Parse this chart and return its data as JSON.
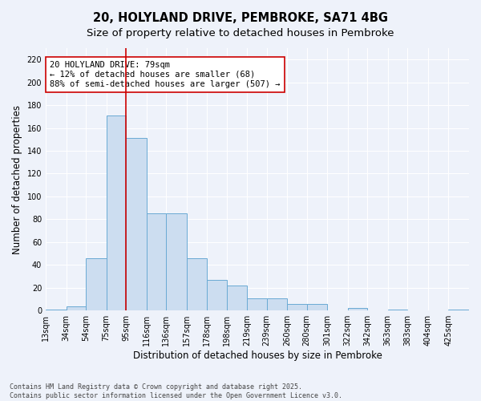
{
  "title_line1": "20, HOLYLAND DRIVE, PEMBROKE, SA71 4BG",
  "title_line2": "Size of property relative to detached houses in Pembroke",
  "xlabel": "Distribution of detached houses by size in Pembroke",
  "ylabel": "Number of detached properties",
  "bin_edges": [
    13,
    34,
    54,
    75,
    95,
    116,
    136,
    157,
    178,
    198,
    219,
    239,
    260,
    280,
    301,
    322,
    342,
    363,
    383,
    404,
    425,
    446
  ],
  "bin_labels": [
    "13sqm",
    "34sqm",
    "54sqm",
    "75sqm",
    "95sqm",
    "116sqm",
    "136sqm",
    "157sqm",
    "178sqm",
    "198sqm",
    "219sqm",
    "239sqm",
    "260sqm",
    "280sqm",
    "301sqm",
    "322sqm",
    "342sqm",
    "363sqm",
    "383sqm",
    "404sqm",
    "425sqm"
  ],
  "counts": [
    1,
    4,
    46,
    171,
    151,
    85,
    85,
    46,
    27,
    22,
    11,
    11,
    6,
    6,
    0,
    2,
    0,
    1,
    0,
    0,
    1
  ],
  "bar_color": "#ccddf0",
  "bar_edge_color": "#6aaad4",
  "bar_edge_width": 0.7,
  "vline_x_bin_index": 4,
  "vline_color": "#cc0000",
  "annotation_text": "20 HOLYLAND DRIVE: 79sqm\n← 12% of detached houses are smaller (68)\n88% of semi-detached houses are larger (507) →",
  "annotation_box_color": "#ffffff",
  "annotation_box_edge_color": "#cc0000",
  "ylim": [
    0,
    230
  ],
  "yticks": [
    0,
    20,
    40,
    60,
    80,
    100,
    120,
    140,
    160,
    180,
    200,
    220
  ],
  "background_color": "#eef2fa",
  "grid_color": "#ffffff",
  "footer": "Contains HM Land Registry data © Crown copyright and database right 2025.\nContains public sector information licensed under the Open Government Licence v3.0.",
  "title_fontsize": 10.5,
  "subtitle_fontsize": 9.5,
  "axis_label_fontsize": 8.5,
  "tick_fontsize": 7,
  "annotation_fontsize": 7.5
}
